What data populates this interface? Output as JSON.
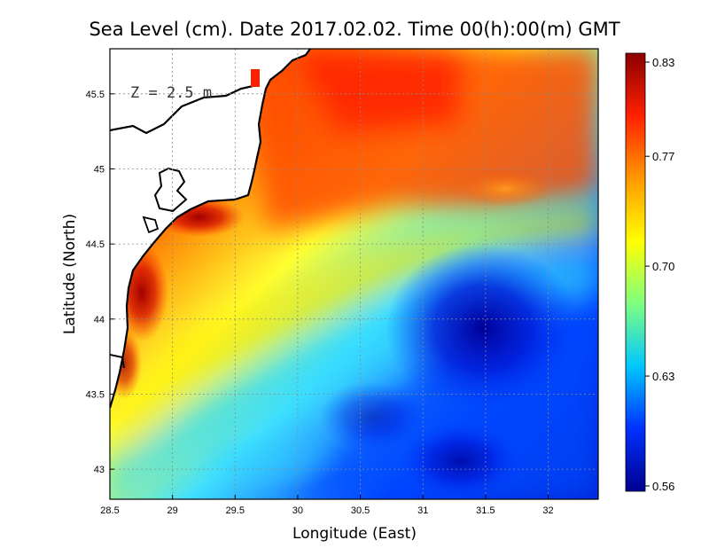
{
  "title": "Sea Level (cm). Date 2017.02.02. Time 00(h):00(m) GMT",
  "depth_label": "Z = 2.5 m",
  "x_axis": {
    "label": "Longitude (East)",
    "ticks": [
      "28.5",
      "29",
      "29.5",
      "30",
      "30.5",
      "31",
      "31.5",
      "32"
    ],
    "range": [
      28.5,
      32.4
    ]
  },
  "y_axis": {
    "label": "Latitude (North)",
    "ticks": [
      "43",
      "43.5",
      "44",
      "44.5",
      "45",
      "45.5"
    ],
    "range": [
      42.8,
      45.8
    ]
  },
  "colorbar": {
    "ticks": [
      "0.83",
      "0.77",
      "0.70",
      "0.63",
      "0.56"
    ],
    "range": [
      0.56,
      0.83
    ],
    "colors": [
      "#00008f",
      "#0030ff",
      "#00c8ff",
      "#7fff80",
      "#ffff00",
      "#ff9900",
      "#ff2000",
      "#8b0000"
    ]
  },
  "grid": true
}
